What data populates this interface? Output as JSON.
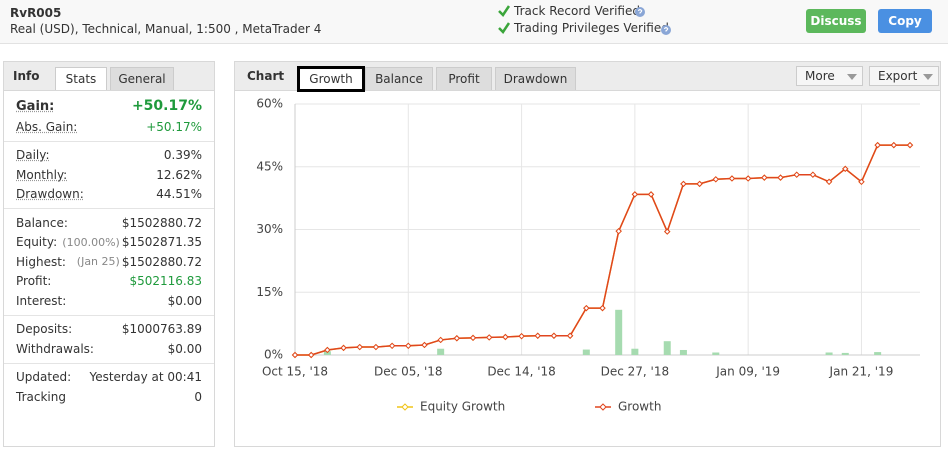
{
  "header": {
    "title": "RvR005",
    "subtitle": "Real (USD), Technical, Manual, 1:500 , MetaTrader 4",
    "verified": [
      "Track Record Verified",
      "Trading Privileges Verified"
    ],
    "buttons": [
      "Discuss",
      "Copy"
    ]
  },
  "info_panel": {
    "heading": "Info",
    "tabs": [
      "Stats",
      "General"
    ],
    "groups": [
      [
        {
          "label": "Gain:",
          "value": "+50.17%"
        },
        {
          "label": "Abs. Gain:",
          "value": "+50.17%"
        }
      ],
      [
        {
          "label": "Daily:",
          "value": "0.39%"
        },
        {
          "label": "Monthly:",
          "value": "12.62%"
        },
        {
          "label": "Drawdown:",
          "value": "44.51%"
        }
      ],
      [
        {
          "label": "Balance:",
          "value": "$1502880.72"
        },
        {
          "label": "Equity:",
          "note": "(100.00%)",
          "value": "$1502871.35"
        },
        {
          "label": "Highest:",
          "note": "(Jan 25)",
          "value": "$1502880.72"
        },
        {
          "label": "Profit:",
          "value": "$502116.83"
        },
        {
          "label": "Interest:",
          "value": "$0.00"
        }
      ],
      [
        {
          "label": "Deposits:",
          "value": "$1000763.89"
        },
        {
          "label": "Withdrawals:",
          "value": "$0.00"
        }
      ],
      [
        {
          "label": "Updated:",
          "value": "Yesterday at 00:41"
        },
        {
          "label": "Tracking",
          "value": "0"
        }
      ]
    ]
  },
  "chart_panel": {
    "heading": "Chart",
    "tabs": [
      "Growth",
      "Balance",
      "Profit",
      "Drawdown"
    ],
    "menus": [
      "More",
      "Export"
    ]
  },
  "chart_data": {
    "type": "line",
    "categories": [
      "Oct 15, '18",
      null,
      null,
      null,
      null,
      null,
      null,
      "Dec 05, '18",
      null,
      null,
      null,
      null,
      null,
      null,
      "Dec 14, '18",
      null,
      null,
      null,
      null,
      null,
      null,
      "Dec 27, '18",
      null,
      null,
      null,
      null,
      null,
      null,
      "Jan 09, '19",
      null,
      null,
      null,
      null,
      null,
      null,
      "Jan 21, '19",
      null,
      null,
      null
    ],
    "series": [
      {
        "name": "Equity Growth",
        "color": "#f0c419",
        "values": [
          0,
          0,
          1.2,
          1.7,
          1.9,
          1.9,
          2.2,
          2.2,
          2.4,
          3.6,
          4.0,
          4.1,
          4.2,
          4.3,
          4.5,
          4.6,
          4.6,
          4.6,
          11.2,
          11.2,
          29.6,
          38.4,
          38.4,
          29.5,
          40.9,
          40.9,
          42.0,
          42.2,
          42.2,
          42.4,
          42.4,
          43.1,
          43.1,
          41.4,
          44.5,
          41.4,
          50.17,
          50.17,
          50.17
        ]
      },
      {
        "name": "Growth",
        "color": "#e0451f",
        "values": [
          0,
          0,
          1.2,
          1.7,
          1.9,
          1.9,
          2.2,
          2.2,
          2.4,
          3.6,
          4.0,
          4.1,
          4.2,
          4.3,
          4.5,
          4.6,
          4.6,
          4.6,
          11.2,
          11.2,
          29.6,
          38.4,
          38.4,
          29.5,
          40.9,
          40.9,
          42.0,
          42.2,
          42.2,
          42.4,
          42.4,
          43.1,
          43.1,
          41.4,
          44.5,
          41.4,
          50.17,
          50.17,
          50.17
        ]
      }
    ],
    "bars": {
      "color": "#a6dbb0",
      "values": [
        0,
        0,
        0.9,
        0,
        0,
        0,
        0,
        0,
        0,
        1.5,
        0,
        0,
        0,
        0,
        0,
        0,
        0,
        0,
        1.3,
        0,
        10.8,
        1.5,
        0,
        3.3,
        1.2,
        0,
        0.6,
        0,
        0,
        0,
        0,
        0,
        0,
        0.6,
        0.5,
        0,
        0.7,
        0,
        0
      ]
    },
    "ylim": [
      0,
      60
    ],
    "yticks": [
      {
        "value": 0,
        "label": "0%"
      },
      {
        "value": 15,
        "label": "15%"
      },
      {
        "value": 30,
        "label": "30%"
      },
      {
        "value": 45,
        "label": "45%"
      },
      {
        "value": 60,
        "label": "60%"
      }
    ],
    "grid": true
  }
}
